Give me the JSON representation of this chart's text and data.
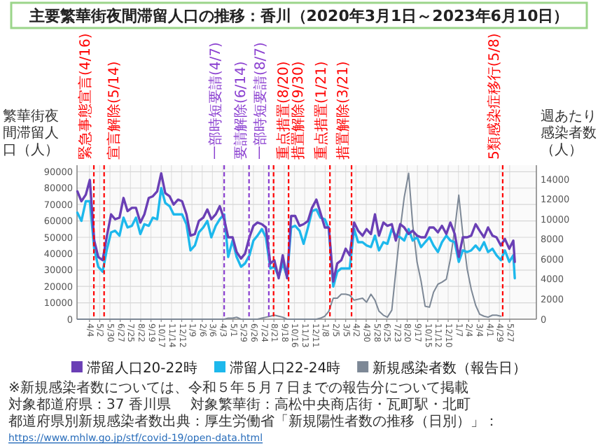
{
  "chart_data": {
    "type": "line",
    "title": "主要繁華街夜間滞留人口の推移：香川（2020年3月1日～2023年6月10日）",
    "ylabel": "繁華街夜間滞留人口（人）",
    "y2label": "週あたり感染者数（人）",
    "xlim": [
      "2020-03-01",
      "2023-08-08"
    ],
    "xticks": [
      {
        "value": "2020-04-04",
        "label": "4/4"
      },
      {
        "value": "2020-05-02",
        "label": "5/2"
      },
      {
        "value": "2020-05-30",
        "label": "5/30"
      },
      {
        "value": "2020-06-27",
        "label": "6/27"
      },
      {
        "value": "2020-07-25",
        "label": "7/25"
      },
      {
        "value": "2020-08-22",
        "label": "8/22"
      },
      {
        "value": "2020-09-19",
        "label": "9/19"
      },
      {
        "value": "2020-10-17",
        "label": "10/17"
      },
      {
        "value": "2020-11-14",
        "label": "11/14"
      },
      {
        "value": "2020-12-12",
        "label": "12/12"
      },
      {
        "value": "2021-01-09",
        "label": "1/9"
      },
      {
        "value": "2021-02-06",
        "label": "2/6"
      },
      {
        "value": "2021-03-06",
        "label": "3/6"
      },
      {
        "value": "2021-04-03",
        "label": "4/3"
      },
      {
        "value": "2021-05-01",
        "label": "5/1"
      },
      {
        "value": "2021-05-29",
        "label": "5/29"
      },
      {
        "value": "2021-06-26",
        "label": "6/26"
      },
      {
        "value": "2021-07-24",
        "label": "7/24"
      },
      {
        "value": "2021-08-21",
        "label": "8/21"
      },
      {
        "value": "2021-09-18",
        "label": "9/18"
      },
      {
        "value": "2021-10-16",
        "label": "10/16"
      },
      {
        "value": "2021-11-13",
        "label": "11/13"
      },
      {
        "value": "2021-12-11",
        "label": "12/11"
      },
      {
        "value": "2022-01-08",
        "label": "1/8"
      },
      {
        "value": "2022-02-05",
        "label": "2/5"
      },
      {
        "value": "2022-03-05",
        "label": "3/5"
      },
      {
        "value": "2022-04-02",
        "label": "4/2"
      },
      {
        "value": "2022-04-30",
        "label": "4/30"
      },
      {
        "value": "2022-05-28",
        "label": "5/28"
      },
      {
        "value": "2022-06-25",
        "label": "6/25"
      },
      {
        "value": "2022-07-23",
        "label": "7/23"
      },
      {
        "value": "2022-08-20",
        "label": "8/20"
      },
      {
        "value": "2022-09-17",
        "label": "9/17"
      },
      {
        "value": "2022-10-15",
        "label": "10/15"
      },
      {
        "value": "2022-11-12",
        "label": "11/12"
      },
      {
        "value": "2022-12-10",
        "label": "12/10"
      },
      {
        "value": "2023-01-07",
        "label": "1/7"
      },
      {
        "value": "2023-02-04",
        "label": "2/4"
      },
      {
        "value": "2023-03-04",
        "label": "3/4"
      },
      {
        "value": "2023-04-01",
        "label": "4/1"
      },
      {
        "value": "2023-04-29",
        "label": "4/29"
      },
      {
        "value": "2023-05-27",
        "label": "5/27"
      }
    ],
    "ylim": [
      0,
      94000
    ],
    "yticks": [
      0,
      10000,
      20000,
      30000,
      40000,
      50000,
      60000,
      70000,
      80000,
      90000
    ],
    "y2lim": [
      0,
      15400
    ],
    "y2ticks": [
      0,
      2000,
      4000,
      6000,
      8000,
      10000,
      12000,
      14000
    ],
    "x": [
      "2020-03-02",
      "2020-03-13",
      "2020-03-25",
      "2020-04-05",
      "2020-04-17",
      "2020-04-28",
      "2020-05-10",
      "2020-05-21",
      "2020-06-02",
      "2020-06-13",
      "2020-06-25",
      "2020-07-06",
      "2020-07-17",
      "2020-07-29",
      "2020-08-09",
      "2020-08-21",
      "2020-09-01",
      "2020-09-13",
      "2020-09-24",
      "2020-10-06",
      "2020-10-17",
      "2020-10-28",
      "2020-11-09",
      "2020-11-20",
      "2020-12-02",
      "2020-12-13",
      "2020-12-25",
      "2021-01-05",
      "2021-01-17",
      "2021-01-28",
      "2021-02-09",
      "2021-02-20",
      "2021-03-03",
      "2021-03-15",
      "2021-03-26",
      "2021-04-07",
      "2021-04-18",
      "2021-04-30",
      "2021-05-11",
      "2021-05-23",
      "2021-06-03",
      "2021-06-15",
      "2021-06-26",
      "2021-07-07",
      "2021-07-19",
      "2021-07-30",
      "2021-08-11",
      "2021-08-22",
      "2021-09-03",
      "2021-09-14",
      "2021-09-26",
      "2021-10-07",
      "2021-10-18",
      "2021-10-30",
      "2021-11-10",
      "2021-11-22",
      "2021-12-03",
      "2021-12-15",
      "2021-12-26",
      "2022-01-07",
      "2022-01-18",
      "2022-01-30",
      "2022-02-10",
      "2022-02-21",
      "2022-03-05",
      "2022-03-16",
      "2022-03-28",
      "2022-04-08",
      "2022-04-20",
      "2022-05-01",
      "2022-05-13",
      "2022-05-24",
      "2022-06-04",
      "2022-06-16",
      "2022-06-27",
      "2022-07-09",
      "2022-07-20",
      "2022-08-01",
      "2022-08-12",
      "2022-08-24",
      "2022-09-04",
      "2022-09-16",
      "2022-09-27",
      "2022-10-08",
      "2022-10-20",
      "2022-10-31",
      "2022-11-12",
      "2022-11-23",
      "2022-12-05",
      "2022-12-16",
      "2022-12-28",
      "2023-01-08",
      "2023-01-19",
      "2023-01-31",
      "2023-02-11",
      "2023-02-23",
      "2023-03-06",
      "2023-03-18",
      "2023-03-29",
      "2023-04-10",
      "2023-04-21",
      "2023-05-03",
      "2023-05-14",
      "2023-05-26",
      "2023-06-06",
      "2023-06-10"
    ],
    "series": [
      {
        "name": "滞留人口20-22時",
        "color": "#6a3fb5",
        "values": [
          78000,
          72000,
          76000,
          85000,
          48000,
          38000,
          36000,
          50000,
          64000,
          61000,
          62000,
          74000,
          66000,
          68000,
          68000,
          59000,
          64000,
          74000,
          75000,
          78000,
          89000,
          77000,
          75000,
          70000,
          73000,
          72000,
          64000,
          51000,
          52000,
          60000,
          62000,
          67000,
          61000,
          64000,
          69000,
          61000,
          50000,
          50000,
          41000,
          37000,
          40000,
          50000,
          57000,
          59000,
          58000,
          56000,
          34000,
          36000,
          25000,
          39000,
          25000,
          63000,
          63000,
          57000,
          58000,
          60000,
          68000,
          73000,
          65000,
          56000,
          56000,
          23000,
          34000,
          36000,
          43000,
          39000,
          59000,
          54000,
          51000,
          55000,
          52000,
          64000,
          51000,
          59000,
          57000,
          58000,
          48000,
          58000,
          56000,
          52000,
          54000,
          51000,
          50000,
          50000,
          56000,
          56000,
          53000,
          57000,
          52000,
          59000,
          52000,
          38000,
          50000,
          50000,
          51000,
          58000,
          54000,
          50000,
          56000,
          51000,
          50000,
          45000,
          49000,
          43000,
          48000,
          35000
        ]
      },
      {
        "name": "滞留人口22-24時",
        "color": "#1db8ec",
        "values": [
          65000,
          60000,
          72000,
          72000,
          43000,
          32000,
          29000,
          42000,
          53000,
          54000,
          51000,
          62000,
          56000,
          57000,
          62000,
          52000,
          58000,
          57000,
          62000,
          61000,
          80000,
          71000,
          69000,
          64000,
          64000,
          64000,
          58000,
          42000,
          45000,
          53000,
          56000,
          60000,
          50000,
          57000,
          61000,
          64000,
          38000,
          48000,
          38000,
          32000,
          34000,
          39000,
          48000,
          51000,
          55000,
          50000,
          31000,
          32000,
          26000,
          34000,
          26000,
          56000,
          57000,
          54000,
          46000,
          56000,
          66000,
          67000,
          62000,
          61000,
          55000,
          20000,
          29000,
          31000,
          31000,
          31000,
          55000,
          47000,
          47000,
          45000,
          44000,
          51000,
          42000,
          47000,
          46000,
          55000,
          51000,
          50000,
          48000,
          55000,
          48000,
          50000,
          44000,
          47000,
          50000,
          45000,
          41000,
          47000,
          51000,
          48000,
          47000,
          35000,
          42000,
          41000,
          42000,
          45000,
          42000,
          47000,
          41000,
          43000,
          39000,
          36000,
          42000,
          35000,
          39000,
          25000
        ]
      },
      {
        "name": "新規感染者数（報告日）",
        "color": "#7d8896",
        "axis": "y2",
        "values": [
          0,
          0,
          0,
          0,
          0,
          0,
          0,
          0,
          0,
          0,
          0,
          0,
          0,
          0,
          0,
          0,
          0,
          0,
          0,
          0,
          0,
          0,
          0,
          0,
          0,
          0,
          0,
          0,
          0,
          0,
          0,
          0,
          0,
          0,
          0,
          0,
          100,
          100,
          200,
          0,
          0,
          0,
          0,
          0,
          100,
          200,
          300,
          400,
          300,
          200,
          0,
          0,
          0,
          0,
          0,
          0,
          0,
          0,
          100,
          300,
          800,
          2100,
          2100,
          2500,
          2500,
          2400,
          1900,
          2000,
          2100,
          1700,
          2500,
          1900,
          800,
          400,
          200,
          900,
          4800,
          9000,
          12200,
          14600,
          9500,
          5700,
          3800,
          1300,
          1200,
          2700,
          3500,
          3700,
          4000,
          6000,
          9000,
          12400,
          8500,
          5000,
          3000,
          1400,
          500,
          300,
          200,
          400,
          400,
          300,
          null,
          null,
          null,
          null
        ]
      }
    ],
    "ref_lines": [
      {
        "axis": "x",
        "value": "2020-04-16",
        "label": "緊急事態宣言(4/16)",
        "color": "#ff0000",
        "line_style": "dashed"
      },
      {
        "axis": "x",
        "value": "2020-05-14",
        "label": "宣言解除(5/14)",
        "color": "#ff0000",
        "line_style": "dashed"
      },
      {
        "axis": "x",
        "value": "2021-04-07",
        "label": "一部時短要請(4/7)",
        "color": "#8a3fd0",
        "line_style": "dashed"
      },
      {
        "axis": "x",
        "value": "2021-06-14",
        "label": "要請解除(6/14)",
        "color": "#8a3fd0",
        "line_style": "dashed"
      },
      {
        "axis": "x",
        "value": "2021-08-07",
        "label": "一部時短要請(8/7)",
        "color": "#8a3fd0",
        "line_style": "dashed"
      },
      {
        "axis": "x",
        "value": "2021-08-20",
        "label": "重点措置(8/20)",
        "color": "#ff0000",
        "line_style": "dashed"
      },
      {
        "axis": "x",
        "value": "2021-09-30",
        "label": "措置解除(9/30)",
        "color": "#ff0000",
        "line_style": "dashed"
      },
      {
        "axis": "x",
        "value": "2022-01-21",
        "label": "重点措置(1/21)",
        "color": "#ff0000",
        "line_style": "dashed"
      },
      {
        "axis": "x",
        "value": "2022-03-21",
        "label": "措置解除(3/21)",
        "color": "#ff0000",
        "line_style": "dashed"
      },
      {
        "axis": "x",
        "value": "2023-05-08",
        "label": "5類感染症移行(5/8)",
        "color": "#ff0000",
        "line_style": "dashed"
      }
    ],
    "grid": true,
    "legend": "bottom",
    "annotations": [
      "※新規感染者数については、令和５年５月７日までの報告分について掲載",
      "対象都道府県：37 香川県",
      "対象繁華街：高松中央商店街・瓦町駅・北町",
      "都道府県別新規感染者数出典：厚生労働省「新規陽性者数の推移（日別）」：",
      "https://www.mhlw.go.jp/stf/covid-19/open-data.html"
    ]
  }
}
